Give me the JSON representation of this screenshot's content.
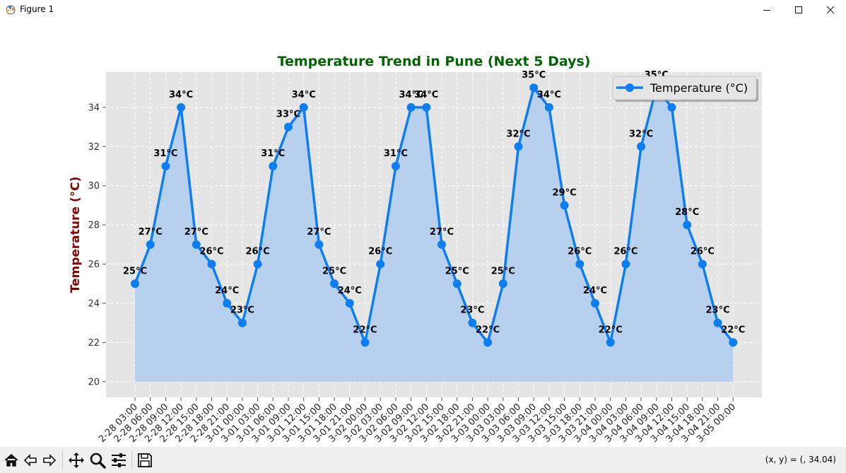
{
  "window": {
    "title": "Figure 1"
  },
  "toolbar": {
    "tools": [
      {
        "name": "home-icon"
      },
      {
        "name": "back-arrow-icon"
      },
      {
        "name": "forward-arrow-icon"
      },
      {
        "name": "pan-icon"
      },
      {
        "name": "zoom-icon"
      },
      {
        "name": "configure-subplots-icon"
      },
      {
        "name": "save-icon"
      }
    ],
    "coords": "(x, y) = (, 34.04)"
  },
  "chart_data": {
    "type": "line",
    "title": "Temperature Trend in Pune (Next 5 Days)",
    "ylabel": "Temperature (°C)",
    "xlabel": "",
    "ylim": [
      19.2,
      35.8
    ],
    "yticks": [
      20,
      22,
      24,
      26,
      28,
      30,
      32,
      34
    ],
    "grid": true,
    "legend_position": "top-right",
    "fill_under": true,
    "colors": {
      "line": "#0d7ef2",
      "fill": "#b7d0ed",
      "title": "#006400",
      "ylabel": "#8b0000",
      "plot_bg": "#e5e5e5"
    },
    "x": [
      "2025-02-28 03:00",
      "2025-02-28 06:00",
      "2025-02-28 09:00",
      "2025-02-28 12:00",
      "2025-02-28 15:00",
      "2025-02-28 18:00",
      "2025-02-28 21:00",
      "2025-03-01 00:00",
      "2025-03-01 03:00",
      "2025-03-01 06:00",
      "2025-03-01 09:00",
      "2025-03-01 12:00",
      "2025-03-01 15:00",
      "2025-03-01 18:00",
      "2025-03-01 21:00",
      "2025-03-02 00:00",
      "2025-03-02 03:00",
      "2025-03-02 06:00",
      "2025-03-02 09:00",
      "2025-03-02 12:00",
      "2025-03-02 15:00",
      "2025-03-02 18:00",
      "2025-03-02 21:00",
      "2025-03-03 00:00",
      "2025-03-03 03:00",
      "2025-03-03 06:00",
      "2025-03-03 09:00",
      "2025-03-03 12:00",
      "2025-03-03 15:00",
      "2025-03-03 18:00",
      "2025-03-03 21:00",
      "2025-03-04 00:00",
      "2025-03-04 03:00",
      "2025-03-04 06:00",
      "2025-03-04 09:00",
      "2025-03-04 12:00",
      "2025-03-04 15:00",
      "2025-03-04 18:00",
      "2025-03-04 21:00",
      "2025-03-05 00:00"
    ],
    "tick_labels": [
      "2-28 03:00",
      "2-28 06:00",
      "2-28 09:00",
      "2-28 12:00",
      "2-28 15:00",
      "2-28 18:00",
      "2-28 21:00",
      "3-01 00:00",
      "3-01 03:00",
      "3-01 06:00",
      "3-01 09:00",
      "3-01 12:00",
      "3-01 15:00",
      "3-01 18:00",
      "3-01 21:00",
      "3-02 00:00",
      "3-02 03:00",
      "3-02 06:00",
      "3-02 09:00",
      "3-02 12:00",
      "3-02 15:00",
      "3-02 18:00",
      "3-02 21:00",
      "3-03 00:00",
      "3-03 03:00",
      "3-03 06:00",
      "3-03 09:00",
      "3-03 12:00",
      "3-03 15:00",
      "3-03 18:00",
      "3-03 21:00",
      "3-04 00:00",
      "3-04 03:00",
      "3-04 06:00",
      "3-04 09:00",
      "3-04 12:00",
      "3-04 15:00",
      "3-04 18:00",
      "3-04 21:00",
      "3-05 00:00"
    ],
    "series": [
      {
        "name": "Temperature (°C)",
        "values": [
          25,
          27,
          31,
          34,
          27,
          26,
          24,
          23,
          26,
          31,
          33,
          34,
          27,
          25,
          24,
          22,
          26,
          31,
          34,
          34,
          27,
          25,
          23,
          22,
          25,
          32,
          35,
          34,
          29,
          26,
          24,
          22,
          26,
          32,
          35,
          34,
          28,
          26,
          23,
          22
        ]
      }
    ],
    "data_labels": [
      "25°C",
      "27°C",
      "31°C",
      "34°C",
      "27°C",
      "26°C",
      "24°C",
      "23°C",
      "26°C",
      "31°C",
      "33°C",
      "34°C",
      "27°C",
      "25°C",
      "24°C",
      "22°C",
      "26°C",
      "31°C",
      "34°C",
      "34°C",
      "27°C",
      "25°C",
      "23°C",
      "22°C",
      "25°C",
      "32°C",
      "35°C",
      "34°C",
      "29°C",
      "26°C",
      "24°C",
      "22°C",
      "26°C",
      "32°C",
      "35°C",
      "34°C",
      "28°C",
      "26°C",
      "23°C",
      "22°C"
    ]
  }
}
